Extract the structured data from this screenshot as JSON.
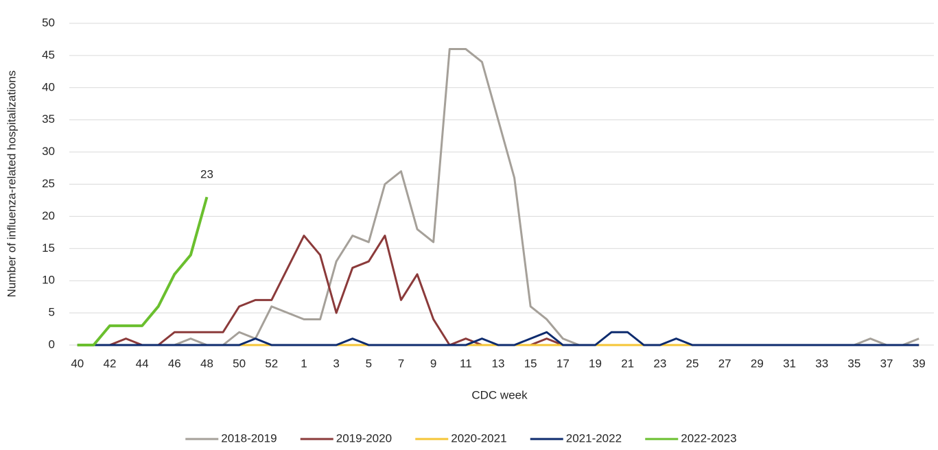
{
  "chart_data": {
    "type": "line",
    "x_label": "CDC week",
    "y_label": "Number of influenza-related hospitalizations",
    "categories": [
      "40",
      null,
      "42",
      null,
      "44",
      null,
      "46",
      null,
      "48",
      null,
      "50",
      null,
      "52",
      null,
      "1",
      null,
      "3",
      null,
      "5",
      null,
      "7",
      null,
      "9",
      null,
      "11",
      null,
      "13",
      null,
      "15",
      null,
      "17",
      null,
      "19",
      null,
      "21",
      null,
      "23",
      null,
      "25",
      null,
      "27",
      null,
      "29",
      null,
      "31",
      null,
      "33",
      null,
      "35",
      null,
      "37",
      null,
      "39"
    ],
    "ylim": [
      0,
      50
    ],
    "yticks": [
      0,
      5,
      10,
      15,
      20,
      25,
      30,
      35,
      40,
      45,
      50
    ],
    "grid": true,
    "legend": "bottom",
    "series": [
      {
        "name": "2018-2019",
        "color": "#a5a099",
        "values": [
          0,
          0,
          0,
          0,
          0,
          0,
          0,
          1,
          0,
          0,
          2,
          1,
          6,
          5,
          4,
          4,
          13,
          17,
          16,
          25,
          27,
          18,
          16,
          46,
          46,
          44,
          35,
          26,
          6,
          4,
          1,
          0,
          0,
          0,
          0,
          0,
          0,
          0,
          0,
          0,
          0,
          0,
          0,
          0,
          0,
          0,
          0,
          0,
          0,
          1,
          0,
          0,
          1
        ]
      },
      {
        "name": "2019-2020",
        "color": "#8b3a3a",
        "values": [
          0,
          0,
          0,
          1,
          0,
          0,
          2,
          2,
          2,
          2,
          6,
          7,
          7,
          12,
          17,
          14,
          5,
          12,
          13,
          17,
          7,
          11,
          4,
          0,
          1,
          0,
          0,
          0,
          0,
          1,
          0,
          0,
          0,
          0,
          0,
          0,
          0,
          0,
          0,
          0,
          0,
          0,
          0,
          0,
          0,
          0,
          0,
          0,
          0,
          0,
          0,
          0,
          0
        ]
      },
      {
        "name": "2020-2021",
        "color": "#f5c536",
        "values": [
          0,
          0,
          0,
          0,
          0,
          0,
          0,
          0,
          0,
          0,
          0,
          0,
          0,
          0,
          0,
          0,
          0,
          0,
          0,
          0,
          0,
          0,
          0,
          0,
          0,
          0,
          0,
          0,
          0,
          0,
          0,
          0,
          0,
          0,
          0,
          0,
          0,
          0,
          0,
          0,
          0,
          0,
          0,
          0,
          0,
          0,
          0,
          0,
          0,
          0,
          0,
          0,
          0
        ]
      },
      {
        "name": "2021-2022",
        "color": "#0d2b6e",
        "values": [
          0,
          0,
          0,
          0,
          0,
          0,
          0,
          0,
          0,
          0,
          0,
          1,
          0,
          0,
          0,
          0,
          0,
          1,
          0,
          0,
          0,
          0,
          0,
          0,
          0,
          1,
          0,
          0,
          1,
          2,
          0,
          0,
          0,
          2,
          2,
          0,
          0,
          1,
          0,
          0,
          0,
          0,
          0,
          0,
          0,
          0,
          0,
          0,
          0,
          0,
          0,
          0,
          0
        ]
      },
      {
        "name": "2022-2023",
        "color": "#6abf2e",
        "label_last": true,
        "values": [
          0,
          0,
          3,
          3,
          3,
          6,
          11,
          14,
          23,
          null,
          null,
          null,
          null,
          null,
          null,
          null,
          null,
          null,
          null,
          null,
          null,
          null,
          null,
          null,
          null,
          null,
          null,
          null,
          null,
          null,
          null,
          null,
          null,
          null,
          null,
          null,
          null,
          null,
          null,
          null,
          null,
          null,
          null,
          null,
          null,
          null,
          null,
          null,
          null,
          null,
          null,
          null,
          null
        ]
      }
    ]
  }
}
